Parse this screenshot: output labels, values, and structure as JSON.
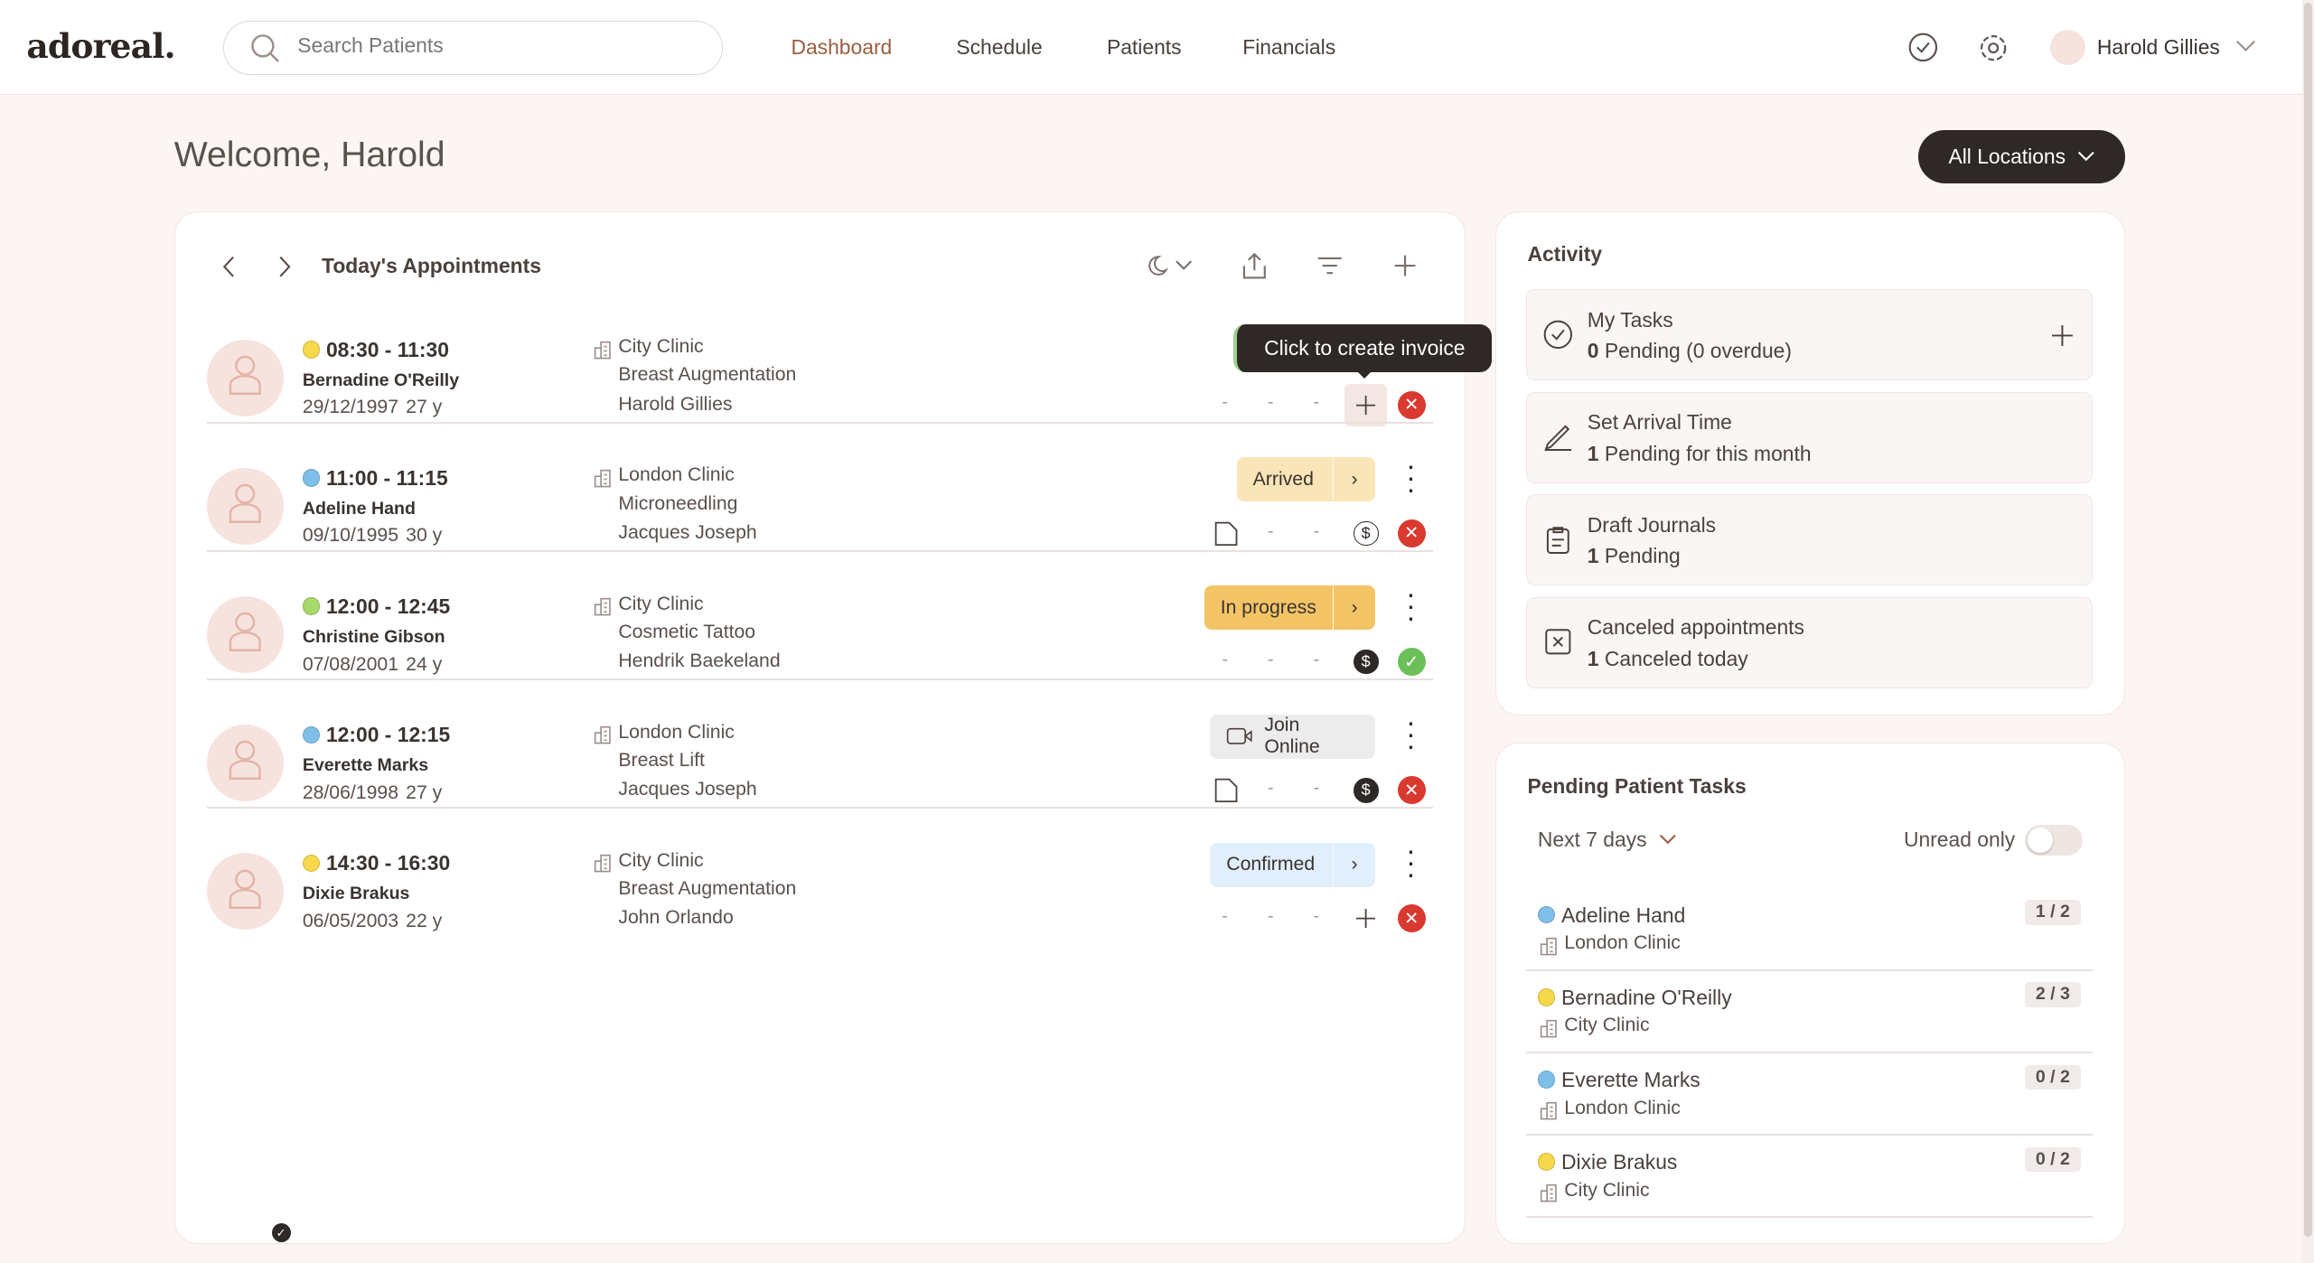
{
  "header": {
    "logo": "adoreal.",
    "search_placeholder": "Search Patients",
    "nav": [
      "Dashboard",
      "Schedule",
      "Patients",
      "Financials"
    ],
    "user": "Harold Gillies"
  },
  "welcome": "Welcome, Harold",
  "locations_button": "All Locations",
  "appointments": {
    "title": "Today's Appointments",
    "tooltip": "Click to create invoice",
    "rows": [
      {
        "time": "08:30 - 11:30",
        "dot": "#f5d94a",
        "name": "Bernadine O'Reilly",
        "dob": "29/12/1997",
        "age": "27 y",
        "clinic": "City Clinic",
        "treatment": "Breast Augmentation",
        "practitioner": "Harold Gillies",
        "status": "",
        "status_color": "",
        "doc": "-",
        "pay": "add",
        "result": "cancel"
      },
      {
        "time": "11:00 - 11:15",
        "dot": "#7dbfe9",
        "name": "Adeline Hand",
        "dob": "09/10/1995",
        "age": "30 y",
        "clinic": "London Clinic",
        "treatment": "Microneedling",
        "practitioner": "Jacques Joseph",
        "status": "Arrived",
        "status_color": "#f9e5b7",
        "doc": "file",
        "pay": "dollar-outline",
        "result": "cancel"
      },
      {
        "time": "12:00 - 12:45",
        "dot": "#a7d86a",
        "name": "Christine Gibson",
        "dob": "07/08/2001",
        "age": "24 y",
        "clinic": "City Clinic",
        "treatment": "Cosmetic Tattoo",
        "practitioner": "Hendrik Baekeland",
        "status": "In progress",
        "status_color": "#f2c466",
        "doc": "-",
        "pay": "dollar-filled",
        "result": "done"
      },
      {
        "time": "12:00 - 12:15",
        "dot": "#7dbfe9",
        "name": "Everette Marks",
        "dob": "28/06/1998",
        "age": "27 y",
        "clinic": "London Clinic",
        "treatment": "Breast Lift",
        "practitioner": "Jacques Joseph",
        "status": "Join Online",
        "status_color": "#ececec",
        "doc": "file",
        "pay": "dollar-filled",
        "result": "cancel"
      },
      {
        "time": "14:30 - 16:30",
        "dot": "#f5d94a",
        "name": "Dixie Brakus",
        "dob": "06/05/2003",
        "age": "22 y",
        "clinic": "City Clinic",
        "treatment": "Breast Augmentation",
        "practitioner": "John Orlando",
        "status": "Confirmed",
        "status_color": "#e1eefb",
        "doc": "-",
        "pay": "add",
        "result": "cancel"
      }
    ]
  },
  "activity": {
    "title": "Activity",
    "items": [
      {
        "title": "My Tasks",
        "count": "0",
        "text": " Pending  (0 overdue)",
        "icon": "check-circle-icon"
      },
      {
        "title": "Set Arrival Time",
        "count": "1",
        "text": " Pending for this month",
        "icon": "pen-icon"
      },
      {
        "title": "Draft Journals",
        "count": "1",
        "text": " Pending",
        "icon": "clipboard-icon"
      },
      {
        "title": "Canceled appointments",
        "count": "1",
        "text": " Canceled today",
        "icon": "x-square-icon"
      }
    ]
  },
  "pending": {
    "title": "Pending Patient Tasks",
    "range": "Next 7 days",
    "unread_label": "Unread only",
    "unread_on": false,
    "items": [
      {
        "name": "Adeline Hand",
        "clinic": "London Clinic",
        "dot": "#7dbfe9",
        "count": "1 / 2"
      },
      {
        "name": "Bernadine O'Reilly",
        "clinic": "City Clinic",
        "dot": "#f5d94a",
        "count": "2 / 3"
      },
      {
        "name": "Everette Marks",
        "clinic": "London Clinic",
        "dot": "#7dbfe9",
        "count": "0 / 2"
      },
      {
        "name": "Dixie Brakus",
        "clinic": "City Clinic",
        "dot": "#f5d94a",
        "count": "0 / 2"
      }
    ]
  }
}
